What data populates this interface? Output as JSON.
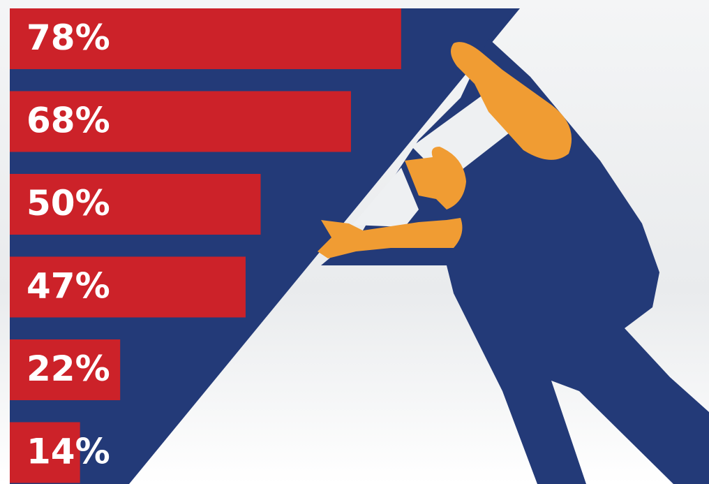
{
  "chart_data": {
    "type": "bar",
    "orientation": "horizontal",
    "values": [
      78,
      68,
      50,
      47,
      22,
      14
    ],
    "value_labels": [
      "78%",
      "68%",
      "50%",
      "47%",
      "22%",
      "14%"
    ],
    "color": "#cc2229"
  }
}
